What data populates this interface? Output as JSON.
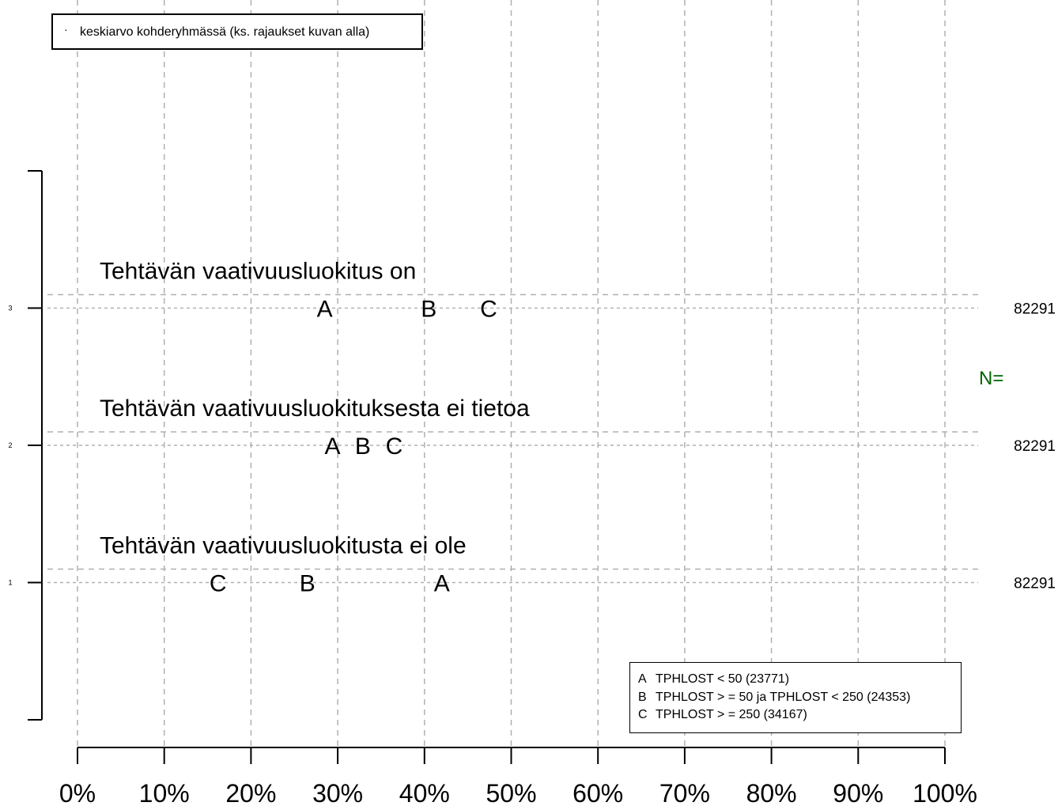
{
  "chart_data": {
    "type": "scatter",
    "x": {
      "ticks": [
        "0%",
        "10%",
        "20%",
        "30%",
        "40%",
        "50%",
        "60%",
        "70%",
        "80%",
        "90%",
        "100%"
      ],
      "range": [
        0,
        100
      ],
      "unit": "%"
    },
    "y": {
      "ticks": [
        "1",
        "2",
        "3"
      ],
      "range": [
        0,
        4
      ]
    },
    "grid": true,
    "rows": [
      {
        "y": 3,
        "label": "Tehtävän vaativuusluokitus on",
        "n": "82291",
        "points": [
          {
            "group": "A",
            "value": 28.5
          },
          {
            "group": "B",
            "value": 40.5
          },
          {
            "group": "C",
            "value": 47.4
          }
        ]
      },
      {
        "y": 2,
        "label": "Tehtävän vaativuusluokituksesta ei tietoa",
        "n": "82291",
        "points": [
          {
            "group": "A",
            "value": 29.4
          },
          {
            "group": "B",
            "value": 32.9
          },
          {
            "group": "C",
            "value": 36.5
          }
        ]
      },
      {
        "y": 1,
        "label": "Tehtävän vaativuusluokitusta ei ole",
        "n": "82291",
        "points": [
          {
            "group": "A",
            "value": 42.0
          },
          {
            "group": "B",
            "value": 26.5
          },
          {
            "group": "C",
            "value": 16.2
          }
        ]
      }
    ],
    "n_label": "N=",
    "n_label_color": "#006400",
    "legend_top": {
      "symbol": "·",
      "text": "keskiarvo kohderyhmässä (ks. rajaukset kuvan alla)",
      "position": "top-left"
    },
    "group_legend": {
      "position": "bottom-right",
      "items": [
        {
          "key": "A",
          "text": "TPHLOST < 50 (23771)"
        },
        {
          "key": "B",
          "text": "TPHLOST > = 50 ja TPHLOST < 250 (24353)"
        },
        {
          "key": "C",
          "text": "TPHLOST > = 250 (34167)"
        }
      ]
    }
  }
}
